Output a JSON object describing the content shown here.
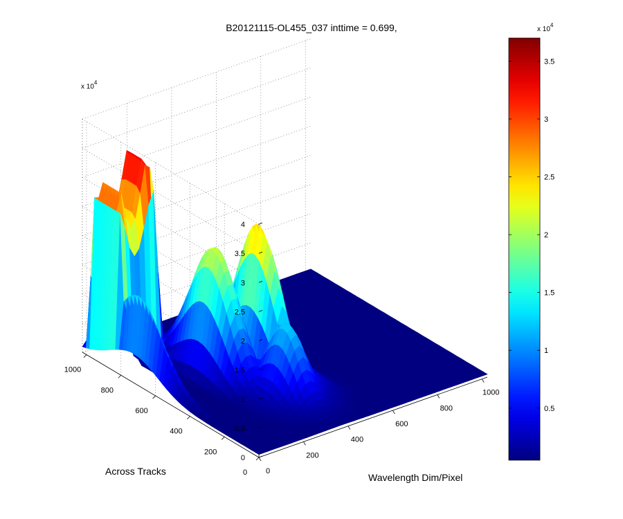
{
  "chart_data": {
    "type": "surface3d",
    "title": "B20121115-OL455_037 inttime = 0.699,",
    "xlabel": "Wavelength Dim/Pixel",
    "ylabel": "Across Tracks",
    "zlabel": "",
    "xlim": [
      0,
      1024
    ],
    "ylim": [
      0,
      1024
    ],
    "zlim": [
      0,
      40000
    ],
    "x_ticks": [
      0,
      200,
      400,
      600,
      800,
      1000
    ],
    "y_ticks": [
      0,
      200,
      400,
      600,
      800,
      1000
    ],
    "z_ticks": [
      0,
      5000,
      10000,
      15000,
      20000,
      25000,
      30000,
      35000,
      40000
    ],
    "z_tick_labels": [
      "0",
      "0.5",
      "1",
      "1.5",
      "2",
      "2.5",
      "3",
      "3.5",
      "4"
    ],
    "z_multiplier": "x 10",
    "z_multiplier_exp": "4",
    "grid": true,
    "colormap": "jet",
    "colorbar": {
      "range": [
        500,
        37000
      ],
      "ticks": [
        5000,
        10000,
        15000,
        20000,
        25000,
        30000,
        35000
      ],
      "tick_labels": [
        "0.5",
        "1",
        "1.5",
        "2",
        "2.5",
        "3",
        "3.5"
      ],
      "multiplier": "x 10",
      "multiplier_exp": "4",
      "placement": "right"
    },
    "surface_features": [
      {
        "description_level": "plateau",
        "x_range": [
          0,
          200
        ],
        "y_range": [
          820,
          1000
        ],
        "z_peak": 37000
      },
      {
        "description_level": "ridge",
        "x_range": [
          200,
          330
        ],
        "y_range": [
          400,
          800
        ],
        "z_peak": 34000
      },
      {
        "description_level": "ridge",
        "x_range": [
          330,
          470
        ],
        "y_range": [
          300,
          700
        ],
        "z_peak": 31000
      },
      {
        "description_level": "shoulder",
        "x_range": [
          0,
          60
        ],
        "y_range": [
          500,
          950
        ],
        "z_peak": 17000
      },
      {
        "description_level": "low hump",
        "x_range": [
          250,
          480
        ],
        "y_range": [
          150,
          450
        ],
        "z_peak": 13000
      },
      {
        "description_level": "floor",
        "x_range": [
          0,
          1024
        ],
        "y_range": [
          0,
          1024
        ],
        "z_peak": 500
      }
    ]
  }
}
